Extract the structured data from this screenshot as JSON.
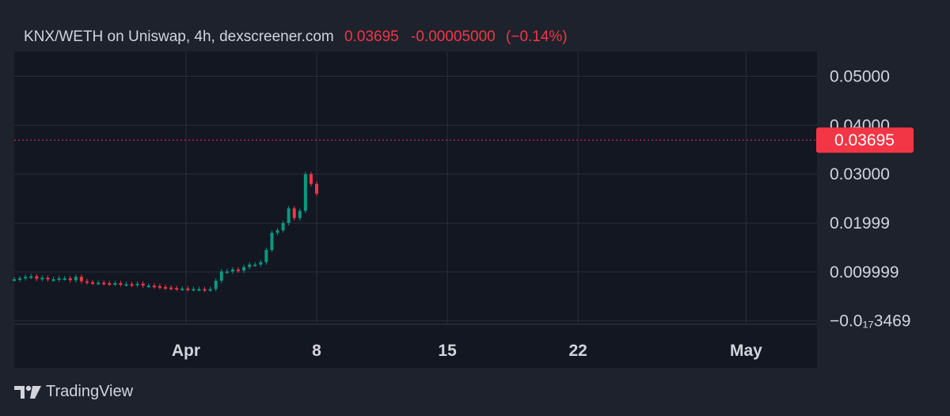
{
  "header": {
    "pair": "KNX/WETH on Uniswap, 4h, dexscreener.com",
    "price": "0.03695",
    "change": "-0.00005000",
    "change_pct": "(−0.14%)"
  },
  "footer": {
    "brand": "TradingView",
    "logo_icon": "tradingview-logo-icon"
  },
  "colors": {
    "background": "#1e222d",
    "plot_background": "#131722",
    "grid": "#2a2e39",
    "up": "#089981",
    "down": "#f23645",
    "trendline": "#2962ff",
    "text": "#d1d4dc",
    "price_label_bg": "#f23645"
  },
  "chart_data": {
    "type": "candlestick",
    "title": "KNX/WETH on Uniswap, 4h, dexscreener.com",
    "y_ticks": [
      "0.05000",
      "0.04000",
      "0.03000",
      "0.01999",
      "0.009999",
      "−0.0₁₇3469"
    ],
    "y_tick_values": [
      0.05,
      0.04,
      0.03,
      0.01999,
      0.009999,
      -3.469e-06
    ],
    "x_ticks": [
      "Apr",
      "8",
      "15",
      "22",
      "May"
    ],
    "x_tick_values": [
      1,
      8,
      15,
      22,
      31
    ],
    "ylim": [
      -0.0007,
      0.0538
    ],
    "xlim": [
      -8.2,
      34.8
    ],
    "last_price": 0.03695,
    "last_price_label": "0.03695",
    "grid": true,
    "candles": [
      [
        -8.2,
        0.0085
      ],
      [
        -7.9,
        0.0087
      ],
      [
        -7.6,
        0.009
      ],
      [
        -7.3,
        0.0091
      ],
      [
        -7.0,
        0.0086
      ],
      [
        -6.7,
        0.0088
      ],
      [
        -6.4,
        0.0085
      ],
      [
        -6.1,
        0.0085
      ],
      [
        -5.8,
        0.0087
      ],
      [
        -5.5,
        0.0087
      ],
      [
        -5.2,
        0.0083
      ],
      [
        -4.9,
        0.009
      ],
      [
        -4.6,
        0.0081
      ],
      [
        -4.3,
        0.0079
      ],
      [
        -4.0,
        0.0078
      ],
      [
        -3.7,
        0.0078
      ],
      [
        -3.4,
        0.0077
      ],
      [
        -3.1,
        0.0076
      ],
      [
        -2.8,
        0.0077
      ],
      [
        -2.5,
        0.0075
      ],
      [
        -2.2,
        0.0075
      ],
      [
        -1.9,
        0.0074
      ],
      [
        -1.6,
        0.0076
      ],
      [
        -1.3,
        0.0072
      ],
      [
        -1.0,
        0.0072
      ],
      [
        -0.7,
        0.0071
      ],
      [
        -0.4,
        0.0069
      ],
      [
        -0.1,
        0.0068
      ],
      [
        0.2,
        0.0067
      ],
      [
        0.5,
        0.0066
      ],
      [
        0.8,
        0.0066
      ],
      [
        1.1,
        0.0065
      ],
      [
        1.4,
        0.0065
      ],
      [
        1.7,
        0.0065
      ],
      [
        2.0,
        0.0064
      ],
      [
        2.3,
        0.0065
      ],
      [
        2.6,
        0.0082
      ],
      [
        2.9,
        0.0101
      ],
      [
        3.2,
        0.0101
      ],
      [
        3.5,
        0.0105
      ],
      [
        3.8,
        0.0103
      ],
      [
        4.1,
        0.011
      ],
      [
        4.4,
        0.0115
      ],
      [
        4.7,
        0.0115
      ],
      [
        5.0,
        0.012
      ],
      [
        5.3,
        0.0145
      ],
      [
        5.6,
        0.018
      ],
      [
        5.9,
        0.0185
      ],
      [
        6.2,
        0.02
      ],
      [
        6.5,
        0.023
      ],
      [
        6.8,
        0.021
      ],
      [
        7.1,
        0.0225
      ],
      [
        7.4,
        0.03
      ],
      [
        7.7,
        0.028
      ],
      [
        8.0,
        0.026
      ]
    ]
  }
}
